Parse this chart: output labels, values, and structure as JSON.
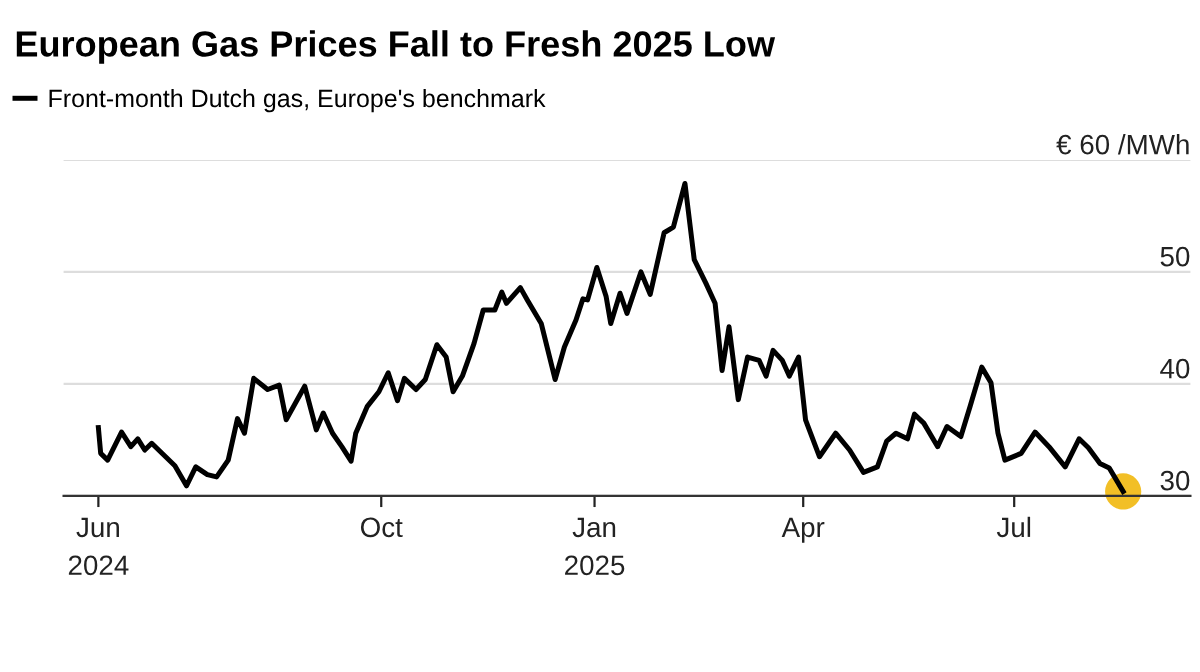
{
  "chart_data": {
    "type": "line",
    "title": "European Gas Prices Fall to Fresh 2025 Low",
    "x": [
      "2024-06-01",
      "2024-06-02",
      "2024-06-05",
      "2024-06-11",
      "2024-06-15",
      "2024-06-18",
      "2024-06-21",
      "2024-06-24",
      "2024-06-30",
      "2024-07-04",
      "2024-07-09",
      "2024-07-13",
      "2024-07-18",
      "2024-07-22",
      "2024-07-27",
      "2024-07-31",
      "2024-08-03",
      "2024-08-07",
      "2024-08-13",
      "2024-08-18",
      "2024-08-21",
      "2024-08-29",
      "2024-09-03",
      "2024-09-06",
      "2024-09-10",
      "2024-09-14",
      "2024-09-18",
      "2024-09-20",
      "2024-09-25",
      "2024-09-30",
      "2024-10-04",
      "2024-10-08",
      "2024-10-11",
      "2024-10-16",
      "2024-10-20",
      "2024-10-25",
      "2024-10-29",
      "2024-11-01",
      "2024-11-05",
      "2024-11-10",
      "2024-11-14",
      "2024-11-19",
      "2024-11-22",
      "2024-11-24",
      "2024-11-30",
      "2024-12-03",
      "2024-12-09",
      "2024-12-15",
      "2024-12-19",
      "2024-12-24",
      "2024-12-27",
      "2024-12-29",
      "2025-01-02",
      "2025-01-06",
      "2025-01-08",
      "2025-01-12",
      "2025-01-15",
      "2025-01-21",
      "2025-01-25",
      "2025-01-31",
      "2025-02-04",
      "2025-02-09",
      "2025-02-13",
      "2025-02-18",
      "2025-02-22",
      "2025-02-25",
      "2025-02-28",
      "2025-03-04",
      "2025-03-08",
      "2025-03-13",
      "2025-03-16",
      "2025-03-19",
      "2025-03-23",
      "2025-03-26",
      "2025-03-30",
      "2025-04-02",
      "2025-04-08",
      "2025-04-15",
      "2025-04-21",
      "2025-04-27",
      "2025-05-03",
      "2025-05-07",
      "2025-05-11",
      "2025-05-16",
      "2025-05-19",
      "2025-05-23",
      "2025-05-29",
      "2025-06-02",
      "2025-06-08",
      "2025-06-12",
      "2025-06-17",
      "2025-06-21",
      "2025-06-24",
      "2025-06-27",
      "2025-07-04",
      "2025-07-10",
      "2025-07-16",
      "2025-07-23",
      "2025-07-29",
      "2025-08-02",
      "2025-08-07",
      "2025-08-11",
      "2025-08-17"
    ],
    "series": [
      {
        "name": "Front-month Dutch gas, Europe's benchmark",
        "color": "#000000",
        "values": [
          36.1,
          33.8,
          33.2,
          35.7,
          34.4,
          35.1,
          34.1,
          34.7,
          33.5,
          32.7,
          30.9,
          32.6,
          31.9,
          31.7,
          33.2,
          36.9,
          35.6,
          40.5,
          39.5,
          39.9,
          36.8,
          39.8,
          35.9,
          37.4,
          35.6,
          34.4,
          33.1,
          35.6,
          38.0,
          39.3,
          41.0,
          38.5,
          40.5,
          39.5,
          40.4,
          43.5,
          42.4,
          39.3,
          40.7,
          43.6,
          46.6,
          46.6,
          48.2,
          47.2,
          48.6,
          47.5,
          45.4,
          40.4,
          43.3,
          45.7,
          47.6,
          47.5,
          50.4,
          47.8,
          45.4,
          48.1,
          46.3,
          50.0,
          48.0,
          53.5,
          54.0,
          57.9,
          51.1,
          49.0,
          47.2,
          41.2,
          45.1,
          38.6,
          42.4,
          42.1,
          40.7,
          43.0,
          42.1,
          40.7,
          42.4,
          36.8,
          33.5,
          35.6,
          34.1,
          32.1,
          32.6,
          34.9,
          35.6,
          35.1,
          37.3,
          36.5,
          34.4,
          36.2,
          35.3,
          38.0,
          41.5,
          40.1,
          35.6,
          33.2,
          33.8,
          35.7,
          34.4,
          32.6,
          35.1,
          34.3,
          32.9,
          32.5,
          30.4
        ]
      },
      {
        "type": "scatter",
        "marker": "circle",
        "color": "#f0b400",
        "x": [
          "2025-08-17"
        ],
        "values": [
          30.4
        ]
      }
    ],
    "xlim": [
      "2024-05-17",
      "2025-09-15"
    ],
    "xticks": [
      {
        "value": "2024-06-01",
        "label": "Jun\n2024"
      },
      {
        "value": "2024-10-01",
        "label": "Oct"
      },
      {
        "value": "2025-01-01",
        "label": "Jan\n2025"
      },
      {
        "value": "2025-04-01",
        "label": "Apr"
      },
      {
        "value": "2025-07-01",
        "label": "Jul"
      }
    ],
    "ylim": [
      30,
      60
    ],
    "yticks": [
      30,
      40,
      50,
      {
        "value": 60,
        "label": "€ 60 /MWh"
      }
    ],
    "grid": "y",
    "legend": "top left",
    "line_style": "solid",
    "marker": "none"
  }
}
